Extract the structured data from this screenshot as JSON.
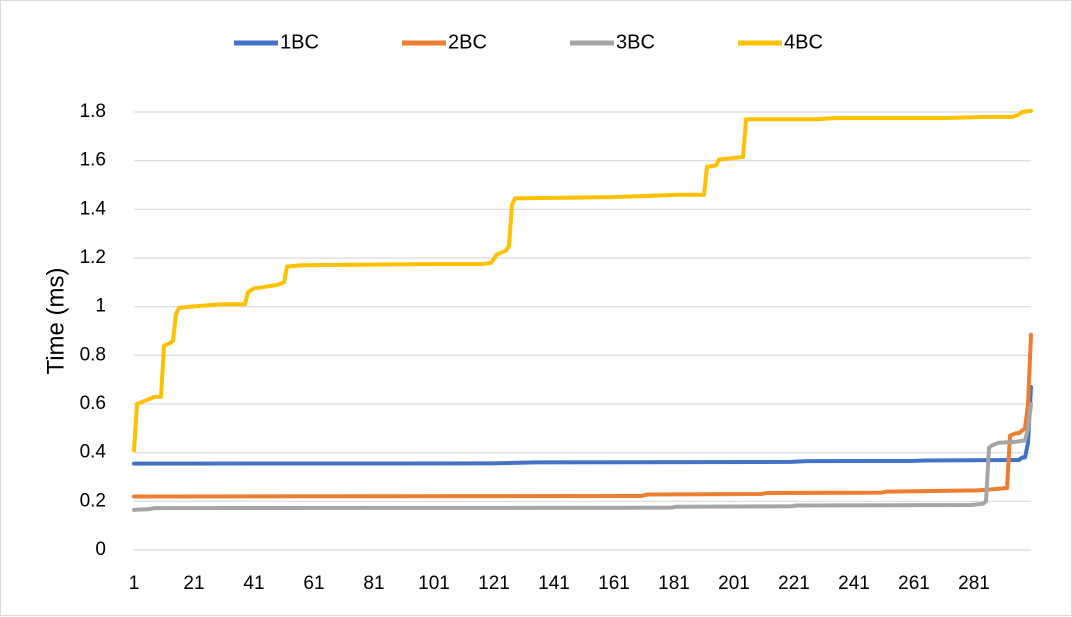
{
  "chart_data": {
    "type": "line",
    "title": "",
    "xlabel": "",
    "ylabel": "Time (ms)",
    "xlim": [
      1,
      300
    ],
    "ylim": [
      0,
      1.8
    ],
    "y_ticks": [
      "0",
      "0.2",
      "0.4",
      "0.6",
      "0.8",
      "1",
      "1.2",
      "1.4",
      "1.6",
      "1.8"
    ],
    "x_ticks": [
      "1",
      "21",
      "41",
      "61",
      "81",
      "101",
      "121",
      "141",
      "161",
      "181",
      "201",
      "221",
      "241",
      "261",
      "281"
    ],
    "grid": "horizontal",
    "legend_position": "top",
    "series": [
      {
        "name": "1BC",
        "color": "#4472C4",
        "points": [
          [
            1,
            0.355
          ],
          [
            120,
            0.356
          ],
          [
            135,
            0.36
          ],
          [
            220,
            0.362
          ],
          [
            225,
            0.365
          ],
          [
            260,
            0.366
          ],
          [
            265,
            0.368
          ],
          [
            296,
            0.37
          ],
          [
            297,
            0.38
          ],
          [
            298,
            0.38
          ],
          [
            299,
            0.44
          ],
          [
            300,
            0.67
          ]
        ]
      },
      {
        "name": "2BC",
        "color": "#ED7D31",
        "points": [
          [
            1,
            0.22
          ],
          [
            170,
            0.222
          ],
          [
            172,
            0.228
          ],
          [
            210,
            0.23
          ],
          [
            212,
            0.234
          ],
          [
            250,
            0.236
          ],
          [
            252,
            0.24
          ],
          [
            282,
            0.245
          ],
          [
            288,
            0.25
          ],
          [
            292,
            0.255
          ],
          [
            293,
            0.47
          ],
          [
            295,
            0.48
          ],
          [
            296,
            0.48
          ],
          [
            297,
            0.49
          ],
          [
            298,
            0.5
          ],
          [
            299,
            0.6
          ],
          [
            300,
            0.885
          ]
        ]
      },
      {
        "name": "3BC",
        "color": "#A5A5A5",
        "points": [
          [
            1,
            0.165
          ],
          [
            6,
            0.168
          ],
          [
            8,
            0.172
          ],
          [
            180,
            0.174
          ],
          [
            182,
            0.178
          ],
          [
            220,
            0.18
          ],
          [
            222,
            0.183
          ],
          [
            280,
            0.185
          ],
          [
            284,
            0.19
          ],
          [
            285,
            0.2
          ],
          [
            286,
            0.42
          ],
          [
            287,
            0.43
          ],
          [
            289,
            0.44
          ],
          [
            295,
            0.445
          ],
          [
            298,
            0.45
          ],
          [
            299,
            0.5
          ],
          [
            300,
            0.6
          ]
        ]
      },
      {
        "name": "4BC",
        "color": "#FFC000",
        "points": [
          [
            1,
            0.41
          ],
          [
            2,
            0.6
          ],
          [
            4,
            0.61
          ],
          [
            6,
            0.62
          ],
          [
            8,
            0.63
          ],
          [
            10,
            0.63
          ],
          [
            11,
            0.84
          ],
          [
            13,
            0.85
          ],
          [
            14,
            0.86
          ],
          [
            15,
            0.97
          ],
          [
            16,
            0.995
          ],
          [
            20,
            1.0
          ],
          [
            25,
            1.005
          ],
          [
            30,
            1.01
          ],
          [
            38,
            1.01
          ],
          [
            39,
            1.06
          ],
          [
            41,
            1.075
          ],
          [
            44,
            1.08
          ],
          [
            49,
            1.09
          ],
          [
            51,
            1.1
          ],
          [
            52,
            1.165
          ],
          [
            57,
            1.17
          ],
          [
            100,
            1.175
          ],
          [
            117,
            1.175
          ],
          [
            120,
            1.18
          ],
          [
            122,
            1.215
          ],
          [
            125,
            1.23
          ],
          [
            126,
            1.25
          ],
          [
            127,
            1.42
          ],
          [
            128,
            1.445
          ],
          [
            160,
            1.45
          ],
          [
            183,
            1.46
          ],
          [
            191,
            1.46
          ],
          [
            192,
            1.575
          ],
          [
            195,
            1.58
          ],
          [
            196,
            1.605
          ],
          [
            200,
            1.61
          ],
          [
            204,
            1.615
          ],
          [
            205,
            1.77
          ],
          [
            228,
            1.77
          ],
          [
            235,
            1.775
          ],
          [
            270,
            1.775
          ],
          [
            285,
            1.78
          ],
          [
            294,
            1.78
          ],
          [
            296,
            1.79
          ],
          [
            297,
            1.8
          ],
          [
            300,
            1.805
          ]
        ]
      }
    ]
  }
}
